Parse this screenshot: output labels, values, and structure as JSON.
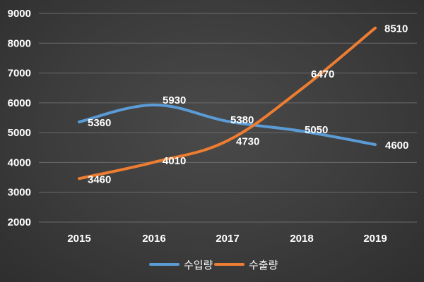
{
  "chart_data": {
    "type": "line",
    "x": [
      "2015",
      "2016",
      "2017",
      "2018",
      "2019"
    ],
    "ylim": [
      2000,
      9000
    ],
    "yticks": [
      2000,
      3000,
      4000,
      5000,
      6000,
      7000,
      8000,
      9000
    ],
    "grid": true,
    "legend_position": "bottom",
    "series": [
      {
        "name": "수입량",
        "values": [
          5360,
          5930,
          5380,
          5050,
          4600
        ],
        "color": "#5b9bd5"
      },
      {
        "name": "수출량",
        "values": [
          3460,
          4010,
          4730,
          6470,
          8510
        ],
        "color": "#ed7d31"
      }
    ]
  }
}
